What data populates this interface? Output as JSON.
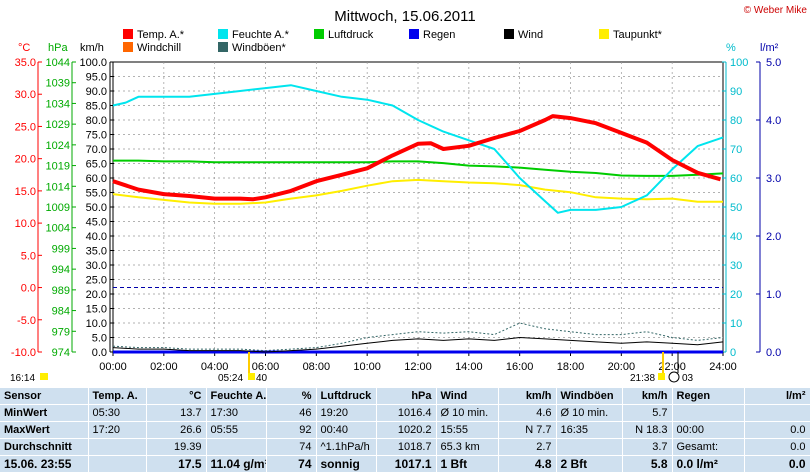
{
  "title": "Mittwoch, 15.06.2011",
  "copyright": "© Weber Mike",
  "axis_units": {
    "temp": "°C",
    "press": "hPa",
    "wind": "km/h",
    "hum": "%",
    "rain": "l/m²"
  },
  "chart_data": {
    "type": "line",
    "x_ticks": [
      "00:00",
      "02:00",
      "04:00",
      "06:00",
      "08:00",
      "10:00",
      "12:00",
      "14:00",
      "16:00",
      "18:00",
      "20:00",
      "22:00",
      "24:00"
    ],
    "axes": {
      "temp_ticks": [
        "35.0",
        "30.0",
        "25.0",
        "20.0",
        "15.0",
        "10.0",
        "5.0",
        "0.0",
        "-5.0",
        "-10.0"
      ],
      "press_ticks": [
        "1044",
        "1039",
        "1034",
        "1029",
        "1024",
        "1019",
        "1014",
        "1009",
        "1004",
        "999",
        "994",
        "989",
        "984",
        "979",
        "974"
      ],
      "wind_ticks": [
        "100.0",
        "95.0",
        "90.0",
        "85.0",
        "80.0",
        "75.0",
        "70.0",
        "65.0",
        "60.0",
        "55.0",
        "50.0",
        "45.0",
        "40.0",
        "35.0",
        "30.0",
        "25.0",
        "20.0",
        "15.0",
        "10.0",
        "5.0",
        "0.0"
      ],
      "hum_ticks": [
        "100",
        "90",
        "80",
        "70",
        "60",
        "50",
        "40",
        "30",
        "20",
        "10",
        "0"
      ],
      "rain_ticks": [
        "5.0",
        "4.0",
        "3.0",
        "2.0",
        "1.0",
        "0.0"
      ]
    },
    "legend": [
      {
        "name": "Temp. A.*",
        "color": "#ff0000"
      },
      {
        "name": "Feuchte A.*",
        "color": "#00e5ee"
      },
      {
        "name": "Luftdruck",
        "color": "#00cc00"
      },
      {
        "name": "Regen",
        "color": "#0000ee"
      },
      {
        "name": "Wind",
        "color": "#000000"
      },
      {
        "name": "Taupunkt*",
        "color": "#ffee00"
      },
      {
        "name": "Windchill",
        "color": "#ff6600"
      },
      {
        "name": "Windböen*",
        "color": "#336666"
      }
    ],
    "series": [
      {
        "name": "Temp. A.*",
        "axis": "temp",
        "color": "#ff0000",
        "x": [
          0,
          1,
          2,
          3,
          4,
          5,
          5.5,
          6,
          7,
          8,
          9,
          10,
          11,
          12,
          12.5,
          13,
          14,
          15,
          16,
          17,
          17.3,
          18,
          19,
          20,
          21,
          22,
          23,
          23.9
        ],
        "y": [
          16.5,
          15.2,
          14.5,
          14.2,
          13.8,
          13.8,
          13.7,
          14.0,
          15.0,
          16.5,
          17.5,
          18.5,
          20.5,
          22.3,
          22.4,
          21.5,
          22.0,
          23.2,
          24.3,
          26.0,
          26.6,
          26.3,
          25.5,
          24.0,
          22.5,
          19.8,
          17.8,
          16.8
        ]
      },
      {
        "name": "Feuchte A.*",
        "axis": "hum",
        "color": "#00e5ee",
        "x": [
          0,
          0.5,
          1,
          2,
          3,
          4,
          5,
          6,
          7,
          8,
          9,
          10,
          11,
          12,
          13,
          14,
          15,
          16,
          16.5,
          17,
          17.5,
          18,
          19,
          20,
          21,
          22,
          23,
          24
        ],
        "y": [
          85,
          86,
          88,
          88,
          88,
          89,
          90,
          91,
          92,
          90,
          88,
          87,
          85,
          80,
          76,
          73,
          70,
          60,
          56,
          52,
          48,
          49,
          49,
          50,
          54,
          63,
          71,
          74
        ]
      },
      {
        "name": "Luftdruck",
        "axis": "press",
        "color": "#00cc00",
        "x": [
          0,
          1,
          2,
          3,
          4,
          5,
          6,
          7,
          8,
          9,
          10,
          11,
          12,
          13,
          14,
          15,
          16,
          17,
          18,
          19,
          20,
          21,
          22,
          23,
          24
        ],
        "y": [
          1020.2,
          1020.2,
          1020.0,
          1020.0,
          1019.8,
          1019.8,
          1019.8,
          1019.8,
          1019.8,
          1019.8,
          1019.8,
          1020.0,
          1020.0,
          1019.6,
          1019.0,
          1018.8,
          1018.5,
          1018.0,
          1017.5,
          1017.2,
          1016.6,
          1016.5,
          1016.5,
          1016.8,
          1017.1
        ]
      },
      {
        "name": "Taupunkt*",
        "axis": "temp",
        "color": "#ffee00",
        "x": [
          0,
          1,
          2,
          3,
          4,
          5,
          6,
          7,
          8,
          9,
          10,
          11,
          12,
          13,
          14,
          15,
          16,
          17,
          18,
          19,
          20,
          21,
          22,
          23,
          24
        ],
        "y": [
          14.5,
          14.0,
          13.6,
          13.2,
          13.0,
          13.0,
          13.2,
          13.8,
          14.3,
          15.0,
          15.8,
          16.5,
          16.7,
          16.5,
          16.3,
          16.2,
          15.9,
          15.2,
          14.8,
          14.0,
          13.8,
          13.7,
          13.8,
          13.3,
          13.3
        ]
      },
      {
        "name": "Wind",
        "axis": "wind",
        "color": "#000000",
        "x": [
          0,
          1,
          2,
          3,
          4,
          5,
          6,
          7,
          8,
          9,
          10,
          11,
          12,
          13,
          14,
          15,
          16,
          17,
          18,
          19,
          20,
          21,
          22,
          23,
          24
        ],
        "y": [
          1.5,
          1,
          1,
          0.5,
          0.5,
          0.5,
          0,
          0.5,
          1,
          2,
          3,
          4,
          4.5,
          4,
          4.5,
          4,
          5,
          4.5,
          4,
          3.5,
          3,
          3.5,
          3,
          2.5,
          3.5
        ]
      },
      {
        "name": "Windböen*",
        "axis": "wind",
        "color": "#336666",
        "x": [
          0,
          1,
          2,
          3,
          4,
          5,
          6,
          7,
          8,
          9,
          10,
          11,
          12,
          13,
          14,
          15,
          16,
          17,
          18,
          19,
          20,
          21,
          22,
          23,
          24
        ],
        "y": [
          2,
          1.5,
          1.5,
          1,
          1,
          1,
          0.5,
          1,
          1.5,
          3,
          5,
          6,
          7,
          6.5,
          7,
          6,
          10,
          8,
          7,
          6,
          6,
          7,
          5,
          4,
          5
        ]
      },
      {
        "name": "Regen",
        "axis": "rain",
        "color": "#0000ee",
        "x": [
          0,
          24
        ],
        "y": [
          0,
          0
        ]
      }
    ],
    "reference_lines": [
      {
        "axis": "temp",
        "value": 0,
        "color": "#0000aa",
        "style": "dashed"
      }
    ],
    "grid": true
  },
  "markers": {
    "left_time": "16:14",
    "sunrise": "05:24",
    "sunrise_extra": "40",
    "sunset": "21:38",
    "sunset_extra": "03"
  },
  "table": {
    "headers": [
      "Sensor",
      "Temp. A.",
      "°C",
      "Feuchte A.",
      "%",
      "Luftdruck",
      "hPa",
      "Wind",
      "km/h",
      "Windböen",
      "km/h",
      "Regen",
      "l/m²"
    ],
    "rows": [
      [
        "MinWert",
        "05:30",
        "13.7",
        "17:30",
        "46",
        "19:20",
        "1016.4",
        "Ø 10 min.",
        "4.6",
        "Ø 10 min.",
        "5.7",
        "",
        ""
      ],
      [
        "MaxWert",
        "17:20",
        "26.6",
        "05:55",
        "92",
        "00:40",
        "1020.2",
        "15:55",
        "N 7.7",
        "16:35",
        "N 18.3",
        "00:00",
        "0.0"
      ],
      [
        "Durchschnitt",
        "",
        "19.39",
        "",
        "74",
        "^1.1hPa/h",
        "1018.7",
        "65.3 km",
        "2.7",
        "",
        "3.7",
        "Gesamt:",
        "0.0"
      ],
      [
        "15.06. 23:55",
        "",
        "17.5",
        "11.04 g/m³",
        "74",
        "sonnig",
        "1017.1",
        "1 Bft",
        "4.8",
        "2 Bft",
        "5.8",
        "0.0 l/m²",
        "0.0"
      ]
    ]
  }
}
